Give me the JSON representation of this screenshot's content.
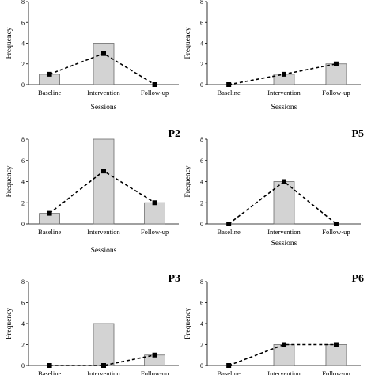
{
  "chart_data": [
    {
      "type": "bar",
      "title": "",
      "categories": [
        "Baseline",
        "Intervention",
        "Follow-up"
      ],
      "series": [
        {
          "kind": "bar",
          "values": [
            1,
            4,
            0
          ]
        },
        {
          "kind": "line",
          "values": [
            1,
            3,
            0
          ]
        }
      ],
      "ylabel": "Frequency",
      "xlabel": "Sessions",
      "ylim": [
        0,
        8
      ],
      "yticks": [
        "0",
        "2",
        "4",
        "6",
        "8"
      ],
      "colors": {
        "bar_fill": "#d3d3d3",
        "bar_edge": "#6b6b6b",
        "line": "#000000"
      }
    },
    {
      "type": "bar",
      "title": "",
      "categories": [
        "Baseline",
        "Intervention",
        "Follow-up"
      ],
      "series": [
        {
          "kind": "bar",
          "values": [
            0,
            1,
            2
          ]
        },
        {
          "kind": "line",
          "values": [
            0,
            1,
            2
          ]
        }
      ],
      "ylabel": "Frequency",
      "xlabel": "Sessions",
      "ylim": [
        0,
        8
      ],
      "yticks": [
        "0",
        "2",
        "4",
        "6",
        "8"
      ],
      "colors": {
        "bar_fill": "#d3d3d3",
        "bar_edge": "#6b6b6b",
        "line": "#000000"
      }
    },
    {
      "type": "bar",
      "title": "P2",
      "categories": [
        "Baseline",
        "Intervention",
        "Follow-up"
      ],
      "series": [
        {
          "kind": "bar",
          "values": [
            1,
            8,
            2
          ]
        },
        {
          "kind": "line",
          "values": [
            1,
            5,
            2
          ]
        }
      ],
      "ylabel": "Frequency",
      "xlabel": "Sessions",
      "ylim": [
        0,
        8
      ],
      "yticks": [
        "0",
        "2",
        "4",
        "6",
        "8"
      ],
      "colors": {
        "bar_fill": "#d3d3d3",
        "bar_edge": "#6b6b6b",
        "line": "#000000"
      }
    },
    {
      "type": "bar",
      "title": "P5",
      "categories": [
        "Baseline",
        "Intervention",
        "Follow-up"
      ],
      "series": [
        {
          "kind": "bar",
          "values": [
            0,
            4,
            0
          ]
        },
        {
          "kind": "line",
          "values": [
            0,
            4,
            0
          ]
        }
      ],
      "ylabel": "Frequency",
      "xlabel": "Sessions",
      "ylim": [
        0,
        8
      ],
      "yticks": [
        "0",
        "2",
        "4",
        "6",
        "8"
      ],
      "colors": {
        "bar_fill": "#d3d3d3",
        "bar_edge": "#6b6b6b",
        "line": "#000000"
      }
    },
    {
      "type": "bar",
      "title": "P3",
      "categories": [
        "Baseline",
        "Intervention",
        "Follow-up"
      ],
      "series": [
        {
          "kind": "bar",
          "values": [
            0,
            4,
            1
          ]
        },
        {
          "kind": "line",
          "values": [
            0,
            0,
            1
          ]
        }
      ],
      "ylabel": "Frequency",
      "xlabel": "",
      "ylim": [
        0,
        8
      ],
      "yticks": [
        "0",
        "2",
        "4",
        "6",
        "8"
      ],
      "colors": {
        "bar_fill": "#d3d3d3",
        "bar_edge": "#6b6b6b",
        "line": "#000000"
      }
    },
    {
      "type": "bar",
      "title": "P6",
      "categories": [
        "Baseline",
        "Intervention",
        "Follow-up"
      ],
      "series": [
        {
          "kind": "bar",
          "values": [
            0,
            2,
            2
          ]
        },
        {
          "kind": "line",
          "values": [
            0,
            2,
            2
          ]
        }
      ],
      "ylabel": "Frequency",
      "xlabel": "",
      "ylim": [
        0,
        8
      ],
      "yticks": [
        "0",
        "2",
        "4",
        "6",
        "8"
      ],
      "colors": {
        "bar_fill": "#d3d3d3",
        "bar_edge": "#6b6b6b",
        "line": "#000000"
      }
    }
  ]
}
